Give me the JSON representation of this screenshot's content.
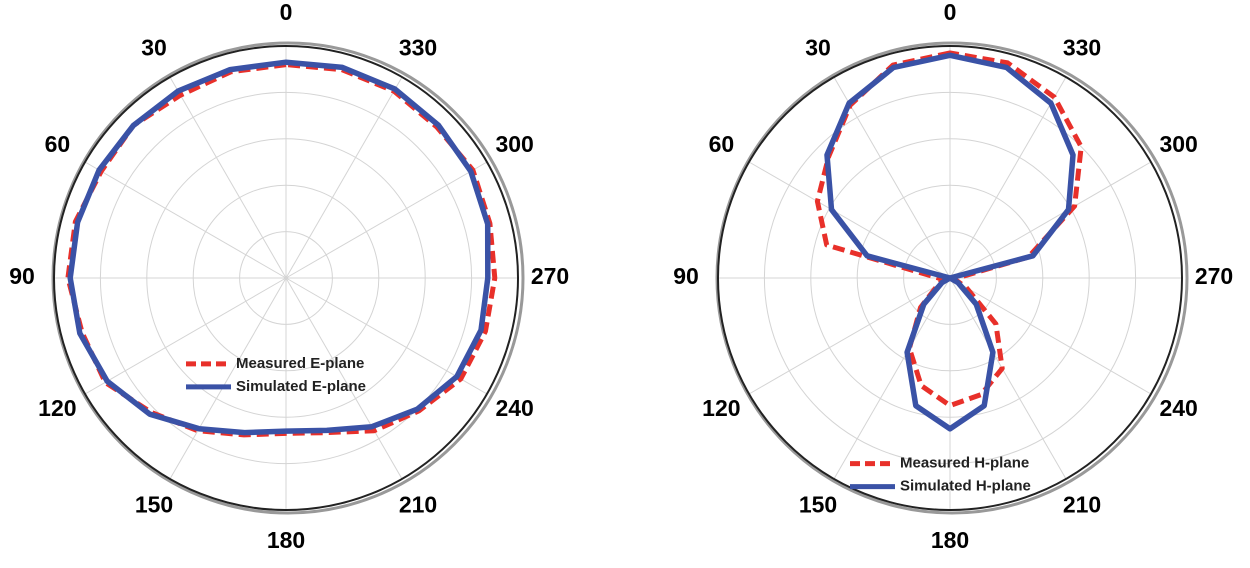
{
  "chart_data": [
    {
      "type": "polar",
      "direction": "counterclockwise",
      "rlim": [
        0,
        1
      ],
      "grid": true,
      "legend": "center",
      "theta": [
        0,
        15,
        30,
        45,
        60,
        75,
        90,
        105,
        120,
        135,
        150,
        165,
        180,
        195,
        210,
        225,
        240,
        255,
        270,
        285,
        300,
        315,
        330,
        345
      ],
      "thetaticks": [
        0,
        30,
        60,
        90,
        120,
        150,
        180,
        210,
        240,
        270,
        300,
        330
      ],
      "series": [
        {
          "name": "Measured E-plane",
          "color": "#e8302a",
          "dashed": true,
          "values": [
            0.92,
            0.92,
            0.91,
            0.93,
            0.92,
            0.94,
            0.94,
            0.91,
            0.9,
            0.82,
            0.76,
            0.7,
            0.67,
            0.69,
            0.76,
            0.81,
            0.87,
            0.89,
            0.9,
            0.91,
            0.93,
            0.92,
            0.93,
            0.93
          ]
        },
        {
          "name": "Simulated E-plane",
          "color": "#3a52a6",
          "dashed": false,
          "values": [
            0.93,
            0.93,
            0.93,
            0.93,
            0.93,
            0.93,
            0.93,
            0.92,
            0.89,
            0.83,
            0.75,
            0.69,
            0.66,
            0.68,
            0.74,
            0.8,
            0.85,
            0.87,
            0.87,
            0.9,
            0.92,
            0.93,
            0.94,
            0.94
          ]
        }
      ]
    },
    {
      "type": "polar",
      "direction": "counterclockwise",
      "rlim": [
        0,
        1
      ],
      "grid": true,
      "legend": "lower center",
      "theta": [
        0,
        15,
        30,
        45,
        60,
        75,
        90,
        105,
        120,
        135,
        150,
        165,
        180,
        195,
        210,
        225,
        240,
        255,
        270,
        285,
        300,
        315,
        330,
        345
      ],
      "thetaticks": [
        0,
        30,
        60,
        90,
        120,
        150,
        180,
        210,
        240,
        270,
        300,
        330
      ],
      "series": [
        {
          "name": "Measured H-plane",
          "color": "#e8302a",
          "dashed": true,
          "values": [
            0.97,
            0.95,
            0.86,
            0.74,
            0.66,
            0.55,
            0.05,
            0.03,
            0.06,
            0.18,
            0.35,
            0.48,
            0.55,
            0.52,
            0.45,
            0.28,
            0.08,
            0.02,
            0.03,
            0.35,
            0.62,
            0.8,
            0.9,
            0.96
          ]
        },
        {
          "name": "Simulated H-plane",
          "color": "#3a52a6",
          "dashed": false,
          "values": [
            0.96,
            0.94,
            0.87,
            0.75,
            0.59,
            0.37,
            0,
            0,
            0.04,
            0.16,
            0.37,
            0.57,
            0.65,
            0.57,
            0.37,
            0.16,
            0.04,
            0,
            0,
            0.37,
            0.59,
            0.75,
            0.87,
            0.94
          ]
        }
      ]
    }
  ]
}
